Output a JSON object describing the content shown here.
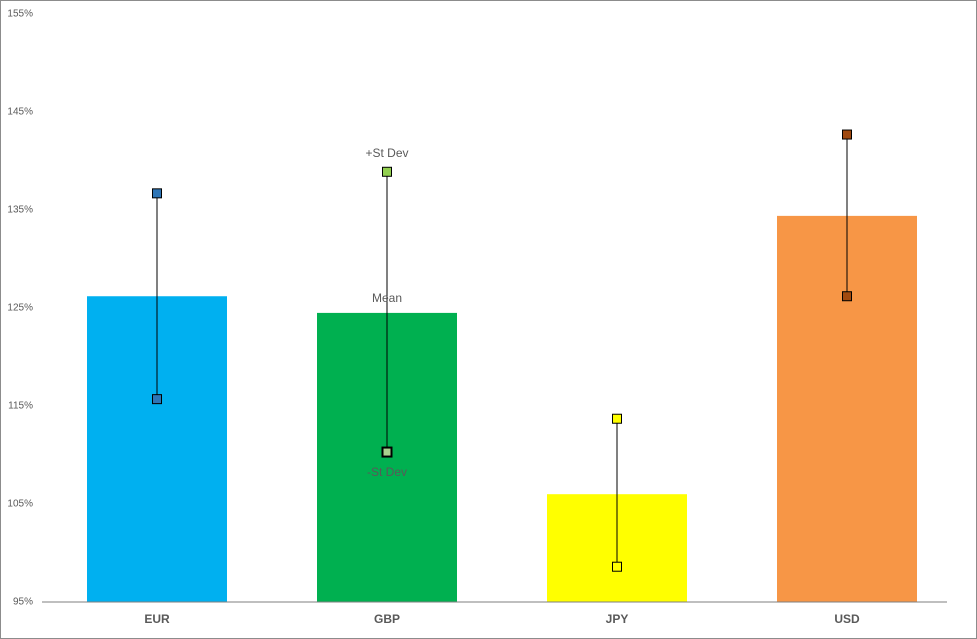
{
  "chart_data": {
    "type": "bar-range",
    "categories": [
      "EUR",
      "GBP",
      "JPY",
      "USD"
    ],
    "series": [
      {
        "name": "Mean",
        "colors": [
          "#00b0f0",
          "#00b050",
          "#ffff00",
          "#f79646"
        ],
        "values": [
          126.2,
          124.5,
          106.0,
          134.4
        ]
      },
      {
        "name": "+St Dev",
        "colors": [
          "#2e75b6",
          "#92d050",
          "#ffff00",
          "#a0490f"
        ],
        "values": [
          136.7,
          138.9,
          113.7,
          142.7
        ]
      },
      {
        "name": "-St Dev",
        "colors": [
          "#2e75b6",
          "#a9d18e",
          "#ffff00",
          "#a0490f"
        ],
        "values": [
          115.7,
          110.3,
          98.6,
          126.2
        ]
      }
    ],
    "ylim": [
      95,
      155
    ],
    "yticks": [
      {
        "value": 95,
        "label": "95%"
      },
      {
        "value": 105,
        "label": "105%"
      },
      {
        "value": 115,
        "label": "115%"
      },
      {
        "value": 125,
        "label": "125%"
      },
      {
        "value": 135,
        "label": "135%"
      },
      {
        "value": 145,
        "label": "145%"
      },
      {
        "value": 155,
        "label": "155%"
      }
    ],
    "grid": false
  }
}
